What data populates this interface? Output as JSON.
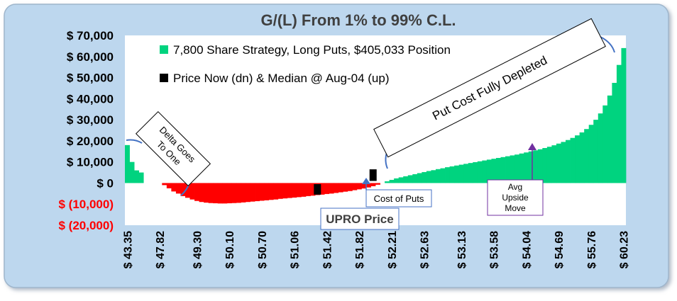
{
  "chart_data": {
    "type": "bar",
    "title": "G/(L) From 1% to 99% C.L.",
    "xlabel": "",
    "ylabel": "",
    "ylim": [
      -20000,
      70000
    ],
    "grid": false,
    "legend_position": "top-left",
    "y_ticks": [
      {
        "value": 70000,
        "label": "$ 70,000",
        "color": "#000000"
      },
      {
        "value": 60000,
        "label": "$ 60,000",
        "color": "#000000"
      },
      {
        "value": 50000,
        "label": "$ 50,000",
        "color": "#000000"
      },
      {
        "value": 40000,
        "label": "$ 40,000",
        "color": "#000000"
      },
      {
        "value": 30000,
        "label": "$ 30,000",
        "color": "#000000"
      },
      {
        "value": 20000,
        "label": "$ 20,000",
        "color": "#000000"
      },
      {
        "value": 10000,
        "label": "$ 10,000",
        "color": "#000000"
      },
      {
        "value": 0,
        "label": "$ 0",
        "color": "#000000"
      },
      {
        "value": -10000,
        "label": "$ (10,000)",
        "color": "#ff0000"
      },
      {
        "value": -20000,
        "label": "$ (20,000)",
        "color": "#ff0000"
      }
    ],
    "x_tick_labels": [
      {
        "index": 0,
        "label": "$ 43.35"
      },
      {
        "index": 7,
        "label": "$ 47.82"
      },
      {
        "index": 15,
        "label": "$ 49.30"
      },
      {
        "index": 22,
        "label": "$ 50.10"
      },
      {
        "index": 29,
        "label": "$ 50.70"
      },
      {
        "index": 36,
        "label": "$ 51.06"
      },
      {
        "index": 43,
        "label": "$ 51.42"
      },
      {
        "index": 50,
        "label": "$ 51.82"
      },
      {
        "index": 57,
        "label": "$ 52.21"
      },
      {
        "index": 64,
        "label": "$ 52.63"
      },
      {
        "index": 72,
        "label": "$ 53.13"
      },
      {
        "index": 79,
        "label": "$ 53.58"
      },
      {
        "index": 86,
        "label": "$ 54.04"
      },
      {
        "index": 93,
        "label": "$ 54.69"
      },
      {
        "index": 100,
        "label": "$ 55.76"
      },
      {
        "index": 107,
        "label": "$ 60.23"
      }
    ],
    "series": [
      {
        "name": "7,800 Share Strategy, Long Puts, $405,033 Position",
        "color_positive": "#00d37f",
        "color_negative": "#ff0000",
        "values": [
          18000,
          10000,
          6000,
          5000,
          0,
          0,
          0,
          0,
          -1000,
          -2500,
          -4000,
          -5000,
          -6200,
          -7000,
          -7800,
          -8500,
          -9000,
          -9300,
          -9500,
          -9600,
          -9700,
          -9700,
          -9600,
          -9500,
          -9400,
          -9200,
          -9000,
          -8800,
          -8600,
          -8400,
          -8200,
          -8000,
          -7800,
          -7500,
          -7300,
          -7100,
          -6900,
          -6700,
          -6500,
          -6200,
          -6000,
          -5700,
          -5500,
          -5200,
          -5000,
          -4700,
          -4400,
          -4100,
          -3800,
          -3400,
          -3000,
          -2600,
          -2100,
          -1500,
          -800,
          0,
          800,
          1500,
          2200,
          2700,
          3200,
          3700,
          4200,
          4700,
          5200,
          5700,
          6100,
          6600,
          7000,
          7500,
          7900,
          8300,
          8700,
          9100,
          9500,
          9900,
          10300,
          10700,
          11100,
          11500,
          11900,
          12300,
          12700,
          13100,
          13500,
          14000,
          14500,
          15000,
          15500,
          16000,
          16600,
          17200,
          17900,
          18700,
          19500,
          20400,
          21400,
          22600,
          24000,
          25600,
          27600,
          30000,
          33000,
          36800,
          41500,
          47500,
          56000,
          64000
        ]
      },
      {
        "name": "Price Now (dn) & Median @ Aug-04 (up)",
        "color": "#000000",
        "markers": [
          {
            "index": 41.5,
            "y_low": -5500,
            "y_high": -500
          },
          {
            "index": 53.5,
            "y_low": 1000,
            "y_high": 6500
          }
        ]
      }
    ],
    "annotations": [
      {
        "text_lines": [
          "Delta Goes",
          "To One"
        ],
        "style": "callout-rotated"
      },
      {
        "text_lines": [
          "Put Cost Fully Depleted"
        ],
        "style": "callout-rotated"
      },
      {
        "text_lines": [
          "Cost of Puts"
        ],
        "style": "box-blue"
      },
      {
        "text_lines": [
          "UPRO Price"
        ],
        "style": "box-bold"
      },
      {
        "text_lines": [
          "Avg",
          "Upside",
          "Move"
        ],
        "style": "box-purple"
      }
    ]
  }
}
